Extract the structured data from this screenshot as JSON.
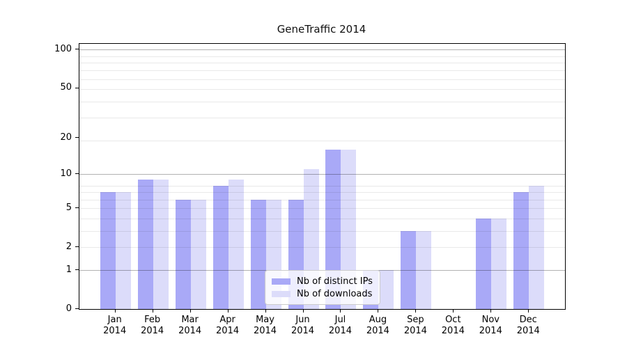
{
  "chart_data": {
    "type": "bar",
    "title": "GeneTraffic 2014",
    "categories": [
      "Jan 2014",
      "Feb 2014",
      "Mar 2014",
      "Apr 2014",
      "May 2014",
      "Jun 2014",
      "Jul 2014",
      "Aug 2014",
      "Sep 2014",
      "Oct 2014",
      "Nov 2014",
      "Dec 2014"
    ],
    "series": [
      {
        "name": "Nb of distinct IPs",
        "color": "#a9a9f7",
        "values": [
          7,
          9,
          6,
          8,
          6,
          6,
          16,
          1,
          3,
          0,
          4,
          7
        ]
      },
      {
        "name": "Nb of downloads",
        "color": "#dcdcfa",
        "values": [
          7,
          9,
          6,
          9,
          6,
          11,
          16,
          1,
          3,
          0,
          4,
          8
        ]
      }
    ],
    "xlabel": "",
    "ylabel": "",
    "y_ticks": [
      0,
      1,
      2,
      5,
      10,
      20,
      50,
      100
    ],
    "y_scale": "log1p",
    "ylim": [
      0,
      112
    ],
    "grid": "horizontal major and minor gridlines, drawn over bars",
    "legend_position": "lower center inside plot"
  },
  "colors": {
    "bar_distinct_ips": "#a9a9f7",
    "bar_downloads": "#dcdcfa",
    "major_gridline": "rgba(0,0,0,0.30)",
    "minor_gridline": "rgba(0,0,0,0.085)",
    "spine": "#000000",
    "text": "#000000",
    "background": "#ffffff"
  }
}
